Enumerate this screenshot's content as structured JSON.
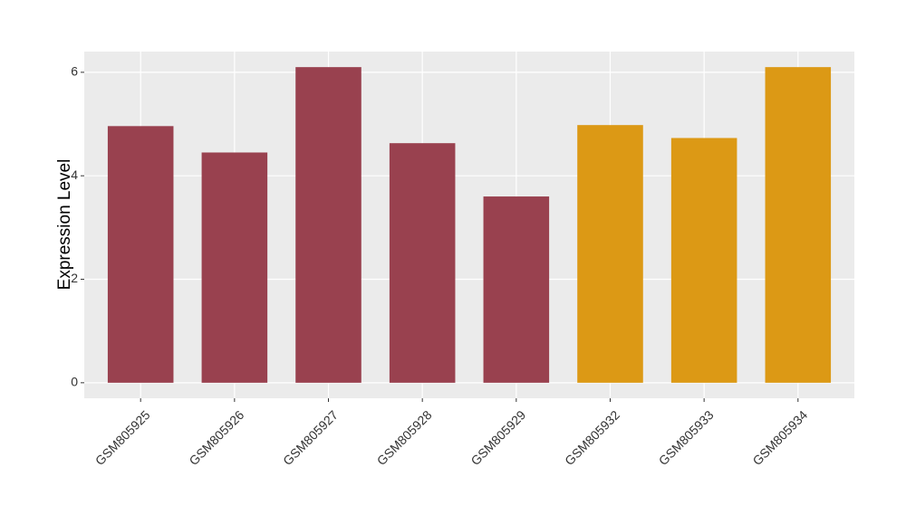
{
  "chart_data": {
    "type": "bar",
    "y_label": "Expression Level",
    "categories": [
      "GSM805925",
      "GSM805926",
      "GSM805927",
      "GSM805928",
      "GSM805929",
      "GSM805932",
      "GSM805933",
      "GSM805934"
    ],
    "values": [
      4.96,
      4.45,
      6.1,
      4.63,
      3.6,
      4.98,
      4.73,
      6.1
    ],
    "colors": [
      "#99414f",
      "#99414f",
      "#99414f",
      "#99414f",
      "#99414f",
      "#dc9915",
      "#dc9915",
      "#dc9915"
    ],
    "ylim": [
      -0.3,
      6.4
    ],
    "yticks": [
      0,
      2,
      4,
      6
    ],
    "grid": true
  }
}
